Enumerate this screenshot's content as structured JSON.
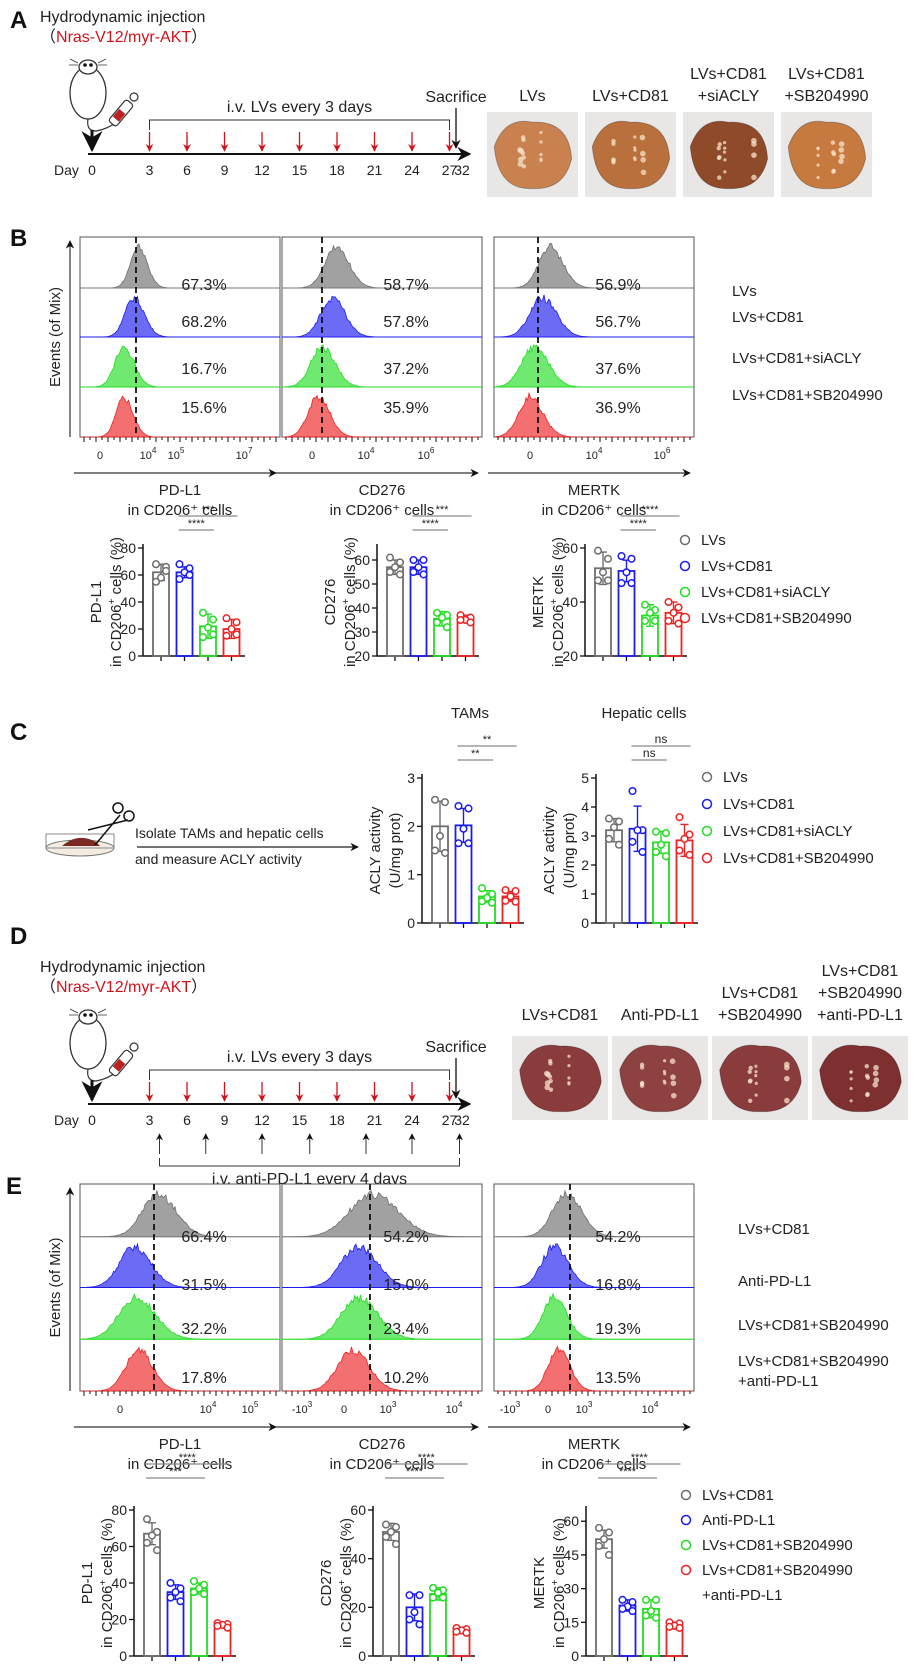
{
  "colors": {
    "gray": "#6e6e6e",
    "blue": "#1c1cf0",
    "green": "#22dd22",
    "red": "#ee2222",
    "dark_red": "#cc1111",
    "axis": "#222222",
    "sig_line": "#8a8a8a"
  },
  "panels": {
    "A": {
      "label": "A",
      "injection_title": "Hydrodynamic injection",
      "injection_construct": "Nras-V12/myr-AKT",
      "lv_schedule": "i.v. LVs every 3 days",
      "sacrifice": "Sacrifice",
      "day_label": "Day",
      "days": [
        "0",
        "3",
        "6",
        "9",
        "12",
        "15",
        "18",
        "21",
        "24",
        "27",
        "32"
      ],
      "lv_days": [
        "3",
        "6",
        "9",
        "12",
        "15",
        "18",
        "21",
        "24",
        "27"
      ],
      "liver_photos": [
        {
          "label": [
            "LVs"
          ],
          "tone": "#c9824f"
        },
        {
          "label": [
            "LVs+CD81"
          ],
          "tone": "#b9703c"
        },
        {
          "label": [
            "LVs+CD81",
            "+siACLY"
          ],
          "tone": "#8f4a2a"
        },
        {
          "label": [
            "LVs+CD81",
            "+SB204990"
          ],
          "tone": "#c67a40"
        }
      ]
    },
    "B": {
      "label": "B",
      "y_axis_label": "Events (of Mix)",
      "groups": [
        "LVs",
        "LVs+CD81",
        "LVs+CD81+siACLY",
        "LVs+CD81+SB204990"
      ],
      "histograms": [
        {
          "marker": "PD-L1",
          "subtitle": "in CD206⁺ cells",
          "ticks": [
            "0",
            "10^4",
            "10^5",
            "10^7"
          ],
          "percents": [
            "67.3%",
            "68.2%",
            "16.7%",
            "15.6%"
          ]
        },
        {
          "marker": "CD276",
          "subtitle": "in CD206⁺ cells",
          "ticks": [
            "0",
            "10^4",
            "10^6"
          ],
          "percents": [
            "58.7%",
            "57.8%",
            "37.2%",
            "35.9%"
          ]
        },
        {
          "marker": "MERTK",
          "subtitle": "in CD206⁺ cells",
          "ticks": [
            "0",
            "10^4",
            "10^6"
          ],
          "percents": [
            "56.9%",
            "56.7%",
            "37.6%",
            "36.9%"
          ]
        }
      ],
      "legend": [
        "LVs",
        "LVs+CD81",
        "LVs+CD81+siACLY",
        "LVs+CD81+SB204990"
      ]
    },
    "C": {
      "label": "C",
      "protocol_line1": "Isolate TAMs and hepatic cells",
      "protocol_line2": "and measure ACLY activity",
      "legend": [
        "LVs",
        "LVs+CD81",
        "LVs+CD81+siACLY",
        "LVs+CD81+SB204990"
      ]
    },
    "D": {
      "label": "D",
      "injection_title": "Hydrodynamic injection",
      "injection_construct": "Nras-V12/myr-AKT",
      "lv_schedule": "i.v. LVs every 3 days",
      "antibody_schedule": "i.v. anti-PD-L1 every 4 days",
      "sacrifice": "Sacrifice",
      "day_label": "Day",
      "days": [
        "0",
        "3",
        "6",
        "9",
        "12",
        "15",
        "18",
        "21",
        "24",
        "27",
        "32"
      ],
      "lv_days": [
        "3",
        "6",
        "9",
        "12",
        "15",
        "18",
        "21",
        "24",
        "27"
      ],
      "antibody_days": [
        "4",
        "8",
        "12",
        "16",
        "20",
        "24",
        "28"
      ],
      "liver_photos": [
        {
          "label": [
            "LVs+CD81"
          ],
          "tone": "#8a3b3b"
        },
        {
          "label": [
            "Anti-PD-L1"
          ],
          "tone": "#8e4141"
        },
        {
          "label": [
            "LVs+CD81",
            "+SB204990"
          ],
          "tone": "#8a3c3c"
        },
        {
          "label": [
            "LVs+CD81",
            "+SB204990",
            "+anti-PD-L1"
          ],
          "tone": "#7e2f30"
        }
      ]
    },
    "E": {
      "label": "E",
      "y_axis_label": "Events (of Mix)",
      "groups": [
        "LVs+CD81",
        "Anti-PD-L1",
        "LVs+CD81+SB204990",
        "LVs+CD81+SB204990\n+anti-PD-L1"
      ],
      "histograms": [
        {
          "marker": "PD-L1",
          "subtitle": "in CD206⁺ cells",
          "ticks": [
            "0",
            "10^4",
            "10^5"
          ],
          "percents": [
            "66.4%",
            "31.5%",
            "32.2%",
            "17.8%"
          ]
        },
        {
          "marker": "CD276",
          "subtitle": "in CD206⁺ cells",
          "ticks": [
            "-10^3",
            "0",
            "10^3",
            "10^4"
          ],
          "percents": [
            "54.2%",
            "15.0%",
            "23.4%",
            "10.2%"
          ]
        },
        {
          "marker": "MERTK",
          "subtitle": "in CD206⁺ cells",
          "ticks": [
            "-10^3",
            "0",
            "10^3",
            "10^4"
          ],
          "percents": [
            "54.2%",
            "16.8%",
            "19.3%",
            "13.5%"
          ]
        }
      ],
      "legend": [
        "LVs+CD81",
        "Anti-PD-L1",
        "LVs+CD81+SB204990",
        "LVs+CD81+SB204990",
        "+anti-PD-L1"
      ]
    }
  },
  "chart_data": [
    {
      "id": "B-PDL1",
      "type": "bar",
      "title": "",
      "ylabel": "PD-L1 in CD206+ cells (%)",
      "ylim": [
        0,
        80
      ],
      "yticks": [
        0,
        20,
        40,
        60,
        80
      ],
      "categories": [
        "LVs",
        "LVs+CD81",
        "LVs+CD81+siACLY",
        "LVs+CD81+SB204990"
      ],
      "values": [
        62,
        62,
        22,
        20
      ],
      "sd": [
        6,
        4,
        9,
        7
      ],
      "points": [
        [
          68,
          66,
          58,
          55,
          63
        ],
        [
          68,
          65,
          62,
          57,
          60
        ],
        [
          32,
          27,
          21,
          14,
          16
        ],
        [
          28,
          25,
          20,
          15,
          16
        ]
      ],
      "significance": [
        {
          "from": 1,
          "to": 2,
          "label": "****"
        },
        {
          "from": 1,
          "to": 3,
          "label": "***"
        }
      ]
    },
    {
      "id": "B-CD276",
      "type": "bar",
      "title": "",
      "ylabel": "CD276 in CD206+ cells (%)",
      "ylim": [
        20,
        65
      ],
      "yticks": [
        20,
        30,
        40,
        50,
        60
      ],
      "categories": [
        "LVs",
        "LVs+CD81",
        "LVs+CD81+siACLY",
        "LVs+CD81+SB204990"
      ],
      "values": [
        57,
        57,
        35.5,
        35.5
      ],
      "sd": [
        3,
        3,
        3,
        1.5
      ],
      "points": [
        [
          61,
          59,
          57,
          55,
          54
        ],
        [
          60,
          60,
          57,
          55,
          54
        ],
        [
          38,
          37,
          36,
          34,
          32
        ],
        [
          37,
          36,
          35,
          35,
          34
        ]
      ],
      "significance": [
        {
          "from": 1,
          "to": 2,
          "label": "****"
        },
        {
          "from": 1,
          "to": 3,
          "label": "***"
        }
      ]
    },
    {
      "id": "B-MERTK",
      "type": "bar",
      "title": "",
      "ylabel": "MERTK in CD206+ cells (%)",
      "ylim": [
        20,
        60
      ],
      "yticks": [
        20,
        40,
        60
      ],
      "categories": [
        "LVs",
        "LVs+CD81",
        "LVs+CD81+siACLY",
        "LVs+CD81+SB204990"
      ],
      "values": [
        52.5,
        51.5,
        35,
        36
      ],
      "sd": [
        6,
        4,
        4,
        4
      ],
      "points": [
        [
          59,
          56,
          51,
          48,
          48
        ],
        [
          57,
          56,
          51,
          47,
          47
        ],
        [
          39,
          37,
          36,
          33,
          33
        ],
        [
          40,
          38,
          36,
          33,
          32
        ]
      ],
      "significance": [
        {
          "from": 1,
          "to": 2,
          "label": "****"
        },
        {
          "from": 1,
          "to": 3,
          "label": "****"
        }
      ]
    },
    {
      "id": "C-TAMs",
      "type": "bar",
      "title": "TAMs",
      "ylabel": "ACLY activity (U/mg prot)",
      "ylim": [
        0,
        3
      ],
      "yticks": [
        0,
        1,
        2,
        3
      ],
      "categories": [
        "LVs",
        "LVs+CD81",
        "LVs+CD81+siACLY",
        "LVs+CD81+SB204990"
      ],
      "values": [
        2.0,
        2.02,
        0.55,
        0.55
      ],
      "sd": [
        0.52,
        0.35,
        0.12,
        0.1
      ],
      "points": [
        [
          2.55,
          2.5,
          1.8,
          1.5,
          1.45
        ],
        [
          2.42,
          2.37,
          1.95,
          1.65,
          1.65
        ],
        [
          0.72,
          0.6,
          0.52,
          0.45,
          0.42
        ],
        [
          0.68,
          0.66,
          0.55,
          0.46,
          0.44
        ]
      ],
      "significance": [
        {
          "from": 1,
          "to": 2,
          "label": "**"
        },
        {
          "from": 1,
          "to": 3,
          "label": "**"
        }
      ]
    },
    {
      "id": "C-Hepatic",
      "type": "bar",
      "title": "Hepatic cells",
      "ylabel": "ACLY activity (U/mg prot)",
      "ylim": [
        0,
        5
      ],
      "yticks": [
        0,
        1,
        2,
        3,
        4,
        5
      ],
      "categories": [
        "LVs",
        "LVs+CD81",
        "LVs+CD81+siACLY",
        "LVs+CD81+SB204990"
      ],
      "values": [
        3.2,
        3.25,
        2.78,
        2.85
      ],
      "sd": [
        0.4,
        0.78,
        0.38,
        0.55
      ],
      "points": [
        [
          3.6,
          3.5,
          3.3,
          2.9,
          2.7
        ],
        [
          4.55,
          3.2,
          3.2,
          2.8,
          2.45
        ],
        [
          3.15,
          3.1,
          2.7,
          2.45,
          2.3
        ],
        [
          3.65,
          3.05,
          2.9,
          2.5,
          2.35
        ]
      ],
      "significance": [
        {
          "from": 1,
          "to": 2,
          "label": "ns"
        },
        {
          "from": 1,
          "to": 3,
          "label": "ns"
        }
      ]
    },
    {
      "id": "E-PDL1",
      "type": "bar",
      "title": "",
      "ylabel": "PD-L1 in CD206+ cells (%)",
      "ylim": [
        0,
        80
      ],
      "yticks": [
        0,
        20,
        40,
        60,
        80
      ],
      "categories": [
        "LVs+CD81",
        "Anti-PD-L1",
        "LVs+CD81+SB204990",
        "LVs+CD81+SB204990+anti-PD-L1"
      ],
      "values": [
        67,
        35,
        37,
        17
      ],
      "sd": [
        6,
        4,
        3,
        1
      ],
      "points": [
        [
          75,
          68,
          66,
          62,
          58
        ],
        [
          40,
          37,
          35,
          32,
          30
        ],
        [
          41,
          39,
          37,
          35,
          34
        ],
        [
          18,
          17.5,
          17,
          16.5,
          15.5
        ]
      ],
      "significance": [
        {
          "from": 0,
          "to": 2,
          "label": "***"
        },
        {
          "from": 0,
          "to": 3,
          "label": "****"
        }
      ]
    },
    {
      "id": "E-CD276",
      "type": "bar",
      "title": "",
      "ylabel": "CD276 in CD206+ cells (%)",
      "ylim": [
        0,
        60
      ],
      "yticks": [
        0,
        20,
        40,
        60
      ],
      "categories": [
        "LVs+CD81",
        "Anti-PD-L1",
        "LVs+CD81+SB204990",
        "LVs+CD81+SB204990+anti-PD-L1"
      ],
      "values": [
        51,
        20,
        25.5,
        10.5
      ],
      "sd": [
        3.5,
        5.5,
        2.5,
        1
      ],
      "points": [
        [
          54,
          53,
          51,
          49,
          46
        ],
        [
          25,
          25,
          18,
          15,
          13
        ],
        [
          28,
          27,
          26,
          24,
          24
        ],
        [
          11.5,
          11,
          10.5,
          10,
          9.5
        ]
      ],
      "significance": [
        {
          "from": 0,
          "to": 2,
          "label": "****"
        },
        {
          "from": 0,
          "to": 3,
          "label": "****"
        }
      ]
    },
    {
      "id": "E-MERTK",
      "type": "bar",
      "title": "",
      "ylabel": "MERTK in CD206+ cells (%)",
      "ylim": [
        0,
        65
      ],
      "yticks": [
        0,
        15,
        30,
        45,
        60
      ],
      "categories": [
        "LVs+CD81",
        "Anti-PD-L1",
        "LVs+CD81+SB204990",
        "LVs+CD81+SB204990+anti-PD-L1"
      ],
      "values": [
        52,
        22.5,
        21,
        13.5
      ],
      "sd": [
        4,
        2.5,
        4,
        1.5
      ],
      "points": [
        [
          57,
          55,
          52,
          49,
          45
        ],
        [
          25,
          24,
          22,
          21,
          20
        ],
        [
          25,
          25,
          20,
          18,
          17
        ],
        [
          15,
          14.5,
          13.5,
          13,
          12.5
        ]
      ],
      "significance": [
        {
          "from": 0,
          "to": 2,
          "label": "****"
        },
        {
          "from": 0,
          "to": 3,
          "label": "****"
        }
      ]
    }
  ]
}
